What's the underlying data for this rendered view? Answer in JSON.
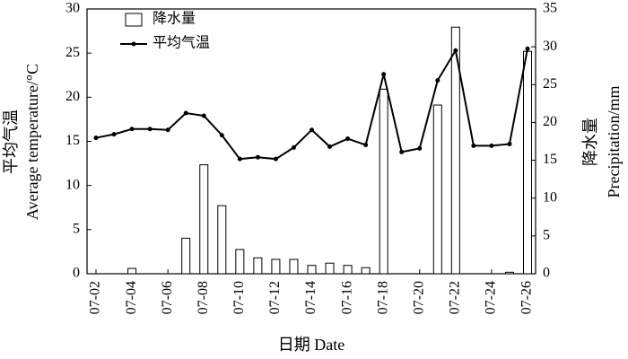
{
  "chart_data": {
    "type": "combo",
    "categories": [
      "07-02",
      null,
      "07-04",
      null,
      "07-06",
      null,
      "07-08",
      null,
      "07-10",
      null,
      "07-12",
      null,
      "07-14",
      null,
      "07-16",
      null,
      "07-18",
      null,
      "07-20",
      null,
      "07-22",
      null,
      "07-24",
      null,
      "07-26"
    ],
    "series": [
      {
        "name": "降水量",
        "type": "bar",
        "axis": "y2",
        "color": "#ffffff",
        "edge_color": "#000000",
        "values": [
          0,
          0,
          0.7,
          0,
          0,
          4.7,
          14.4,
          9.0,
          3.2,
          2.1,
          1.9,
          1.9,
          1.1,
          1.4,
          1.1,
          0.8,
          24.4,
          0,
          0,
          22.3,
          32.6,
          0,
          0,
          0.2,
          29.4
        ]
      },
      {
        "name": "平均气温",
        "type": "line",
        "axis": "y",
        "color": "#000000",
        "values": [
          15.4,
          15.8,
          16.4,
          16.4,
          16.3,
          18.2,
          17.9,
          15.7,
          13.0,
          13.2,
          13.0,
          14.3,
          16.3,
          14.4,
          15.3,
          14.6,
          22.6,
          13.8,
          14.2,
          21.9,
          25.3,
          14.5,
          14.5,
          14.7,
          25.5
        ]
      }
    ],
    "y_label": [
      "平均气温",
      "Average temperature/°C"
    ],
    "y2_label": [
      "降水量",
      "Precipitation/mm"
    ],
    "x_label": "日期 Date",
    "ylim": [
      0,
      30
    ],
    "yticks": [
      0,
      5,
      10,
      15,
      20,
      25,
      30
    ],
    "y2lim": [
      0,
      35
    ],
    "y2ticks": [
      0,
      5,
      10,
      15,
      20,
      25,
      30,
      35
    ],
    "legend": "upper left",
    "grid": false
  }
}
